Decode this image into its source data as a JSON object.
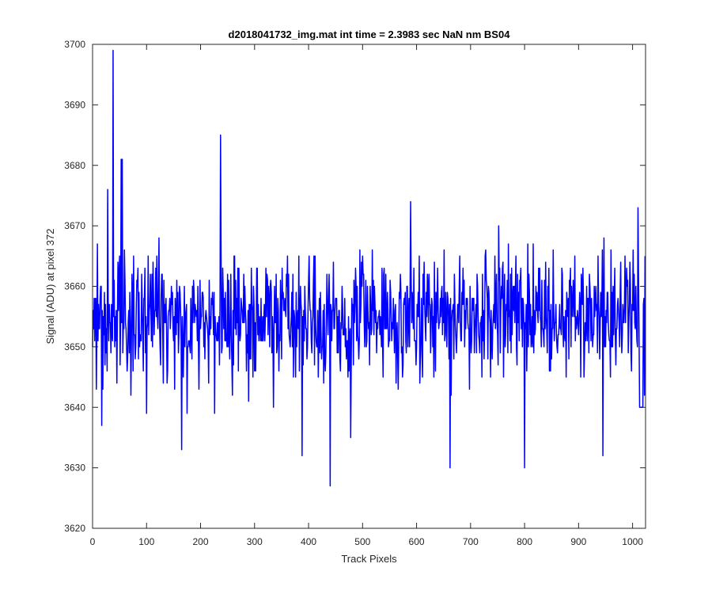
{
  "window": {
    "background": "#ffffff"
  },
  "chart_data": {
    "type": "line",
    "title": "d2018041732_img.mat int time = 2.3983 sec  NaN nm BS04",
    "xlabel": "Track Pixels",
    "ylabel": "Signal (ADU) at pixel 372",
    "xlim": [
      0,
      1024
    ],
    "ylim": [
      3620,
      3700
    ],
    "xticks": [
      "0",
      "100",
      "200",
      "300",
      "400",
      "500",
      "600",
      "700",
      "800",
      "900",
      "1000"
    ],
    "yticks": [
      "3620",
      "3630",
      "3640",
      "3650",
      "3660",
      "3670",
      "3680",
      "3690",
      "3700"
    ],
    "grid": false,
    "box": true,
    "line_color": "#0000ff",
    "n_points": 1024,
    "noise_mean": 3655,
    "noise_std": 5,
    "notable_points": [
      {
        "x": 0,
        "y": 3650
      },
      {
        "x": 7,
        "y": 3643
      },
      {
        "x": 17,
        "y": 3637
      },
      {
        "x": 28,
        "y": 3676
      },
      {
        "x": 38,
        "y": 3699
      },
      {
        "x": 45,
        "y": 3644
      },
      {
        "x": 53,
        "y": 3681
      },
      {
        "x": 55,
        "y": 3681
      },
      {
        "x": 100,
        "y": 3639
      },
      {
        "x": 165,
        "y": 3633
      },
      {
        "x": 175,
        "y": 3639
      },
      {
        "x": 226,
        "y": 3639
      },
      {
        "x": 237,
        "y": 3685
      },
      {
        "x": 335,
        "y": 3640
      },
      {
        "x": 388,
        "y": 3632
      },
      {
        "x": 440,
        "y": 3627
      },
      {
        "x": 478,
        "y": 3635
      },
      {
        "x": 589,
        "y": 3674
      },
      {
        "x": 662,
        "y": 3630
      },
      {
        "x": 800,
        "y": 3630
      },
      {
        "x": 945,
        "y": 3632
      },
      {
        "x": 1010,
        "y": 3673
      },
      {
        "x": 1013,
        "y": 3640
      },
      {
        "x": 1023,
        "y": 3665
      }
    ]
  }
}
